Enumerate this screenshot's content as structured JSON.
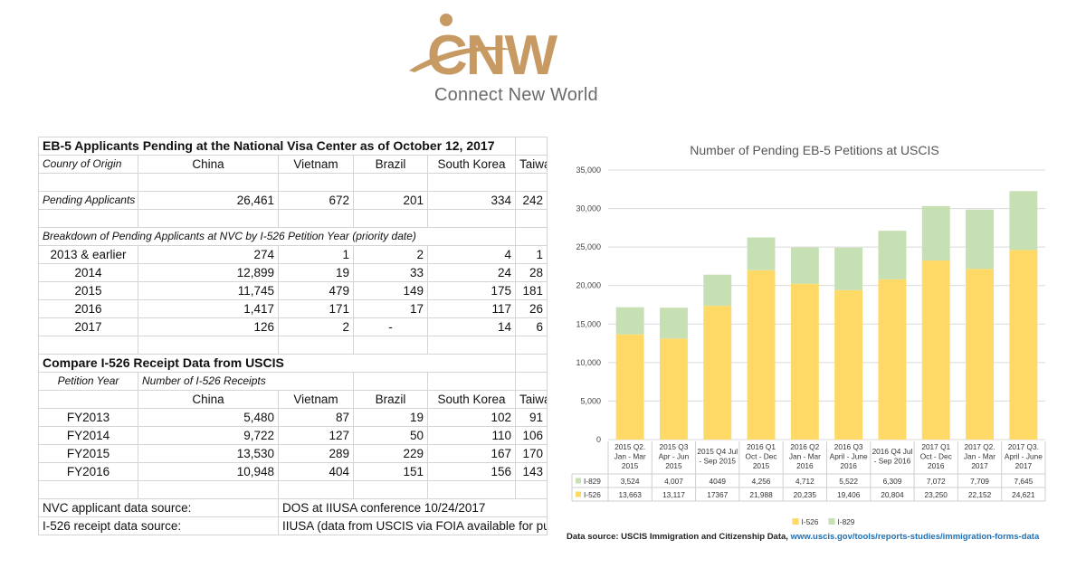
{
  "logo": {
    "mark_text": "CNW",
    "tagline": "Connect New World",
    "brand_color": "#c79a63"
  },
  "table1": {
    "title": "EB-5 Applicants Pending at the National Visa Center as of October 12, 2017",
    "origin_label": "Counry of Origin",
    "countries": [
      "China",
      "Vietnam",
      "Brazil",
      "South Korea",
      "Taiwan"
    ],
    "pending_label": "Pending Applicants",
    "pending_values": [
      "26,461",
      "672",
      "201",
      "334",
      "242"
    ],
    "breakdown_label": "Breakdown of Pending Applicants at NVC by I-526 Petition Year (priority date)",
    "breakdown_rows": [
      {
        "year": "2013 & earlier",
        "values": [
          "274",
          "1",
          "2",
          "4",
          "1"
        ]
      },
      {
        "year": "2014",
        "values": [
          "12,899",
          "19",
          "33",
          "24",
          "28"
        ]
      },
      {
        "year": "2015",
        "values": [
          "11,745",
          "479",
          "149",
          "175",
          "181"
        ]
      },
      {
        "year": "2016",
        "values": [
          "1,417",
          "171",
          "17",
          "117",
          "26"
        ]
      },
      {
        "year": "2017",
        "values": [
          "126",
          "2",
          "-",
          "14",
          "6"
        ]
      }
    ]
  },
  "table2": {
    "title": "Compare I-526 Receipt Data from USCIS",
    "petition_year_label": "Petition Year",
    "receipts_label": "Number of I-526 Receipts",
    "countries": [
      "China",
      "Vietnam",
      "Brazil",
      "South Korea",
      "Taiwan"
    ],
    "rows": [
      {
        "year": "FY2013",
        "values": [
          "5,480",
          "87",
          "19",
          "102",
          "91"
        ]
      },
      {
        "year": "FY2014",
        "values": [
          "9,722",
          "127",
          "50",
          "110",
          "106"
        ]
      },
      {
        "year": "FY2015",
        "values": [
          "13,530",
          "289",
          "229",
          "167",
          "170"
        ]
      },
      {
        "year": "FY2016",
        "values": [
          "10,948",
          "404",
          "151",
          "156",
          "143"
        ]
      }
    ]
  },
  "sources": {
    "nvc_label": "NVC applicant data source:",
    "nvc_value": "DOS at IIUSA conference 10/24/2017",
    "i526_label": "I-526 receipt data source:",
    "i526_value": "IIUSA (data from USCIS via FOIA available for purchase)"
  },
  "chart_data": {
    "type": "bar",
    "stacked": true,
    "title": "Number of Pending EB-5 Petitions at USCIS",
    "categories": [
      "2015 Q2. Jan - Mar 2015",
      "2015 Q3 Apr - Jun 2015",
      "2015 Q4 Jul - Sep 2015",
      "2016 Q1 Oct - Dec 2015",
      "2016 Q2 Jan - Mar 2016",
      "2016 Q3 April - June 2016",
      "2016 Q4 Jul - Sep 2016",
      "2017 Q1 Oct - Dec 2016",
      "2017 Q2. Jan - Mar 2017",
      "2017 Q3. April - June 2017"
    ],
    "category_lines": [
      [
        "2015 Q2.",
        "Jan - Mar",
        "2015"
      ],
      [
        "2015 Q3",
        "Apr - Jun",
        "2015"
      ],
      [
        "2015 Q4 Jul",
        "- Sep 2015"
      ],
      [
        "2016 Q1",
        "Oct - Dec",
        "2015"
      ],
      [
        "2016 Q2",
        "Jan - Mar",
        "2016"
      ],
      [
        "2016 Q3",
        "April - June",
        "2016"
      ],
      [
        "2016 Q4 Jul",
        "- Sep 2016"
      ],
      [
        "2017 Q1",
        "Oct - Dec",
        "2016"
      ],
      [
        "2017 Q2.",
        "Jan - Mar",
        "2017"
      ],
      [
        "2017 Q3.",
        "April - June",
        "2017"
      ]
    ],
    "series": [
      {
        "name": "I-526",
        "color": "#ffd966",
        "values": [
          13663,
          13117,
          17367,
          21988,
          20235,
          19406,
          20804,
          23250,
          22152,
          24621
        ],
        "labels": [
          "13,663",
          "13,117",
          "17367",
          "21,988",
          "20,235",
          "19,406",
          "20,804",
          "23,250",
          "22,152",
          "24,621"
        ]
      },
      {
        "name": "I-829",
        "color": "#c6e0b4",
        "values": [
          3524,
          4007,
          4049,
          4256,
          4712,
          5522,
          6309,
          7072,
          7709,
          7645
        ],
        "labels": [
          "3,524",
          "4,007",
          "4049",
          "4,256",
          "4,712",
          "5,522",
          "6,309",
          "7,072",
          "7,709",
          "7,645"
        ]
      }
    ],
    "ylim": [
      0,
      35000
    ],
    "yticks": [
      0,
      5000,
      10000,
      15000,
      20000,
      25000,
      30000,
      35000
    ],
    "ytick_labels": [
      "0",
      "5,000",
      "10,000",
      "15,000",
      "20,000",
      "25,000",
      "30,000",
      "35,000"
    ],
    "grid": true,
    "legend": {
      "position": "bottom",
      "entries": [
        "I-526",
        "I-829"
      ]
    },
    "data_table": true
  },
  "source_note": {
    "prefix": "Data source: USCIS Immigration and Citizenship Data, ",
    "link": "www.uscis.gov/tools/reports-studies/immigration-forms-data"
  }
}
